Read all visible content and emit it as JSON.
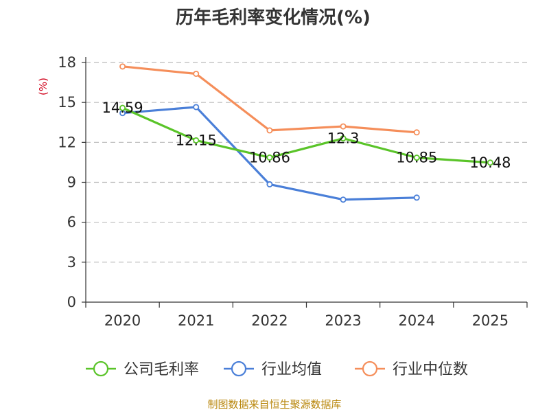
{
  "chart_data": {
    "type": "line",
    "title": "历年毛利率变化情况(%)",
    "ylabel": "(%)",
    "xlabel": "",
    "categories": [
      "2020",
      "2021",
      "2022",
      "2023",
      "2024",
      "2025"
    ],
    "ylim": [
      0,
      18
    ],
    "yticks": [
      0,
      3,
      6,
      9,
      12,
      15,
      18
    ],
    "grid": true,
    "legend_position": "bottom",
    "series": [
      {
        "name": "公司毛利率",
        "color": "#5ac429",
        "values": [
          14.59,
          12.15,
          10.86,
          12.3,
          10.85,
          10.48
        ],
        "labels": [
          "14.59",
          "12.15",
          "10.86",
          "12.3",
          "10.85",
          "10.48"
        ]
      },
      {
        "name": "行业均值",
        "color": "#4a7fd8",
        "values": [
          14.2,
          14.65,
          8.85,
          7.7,
          7.85,
          null
        ]
      },
      {
        "name": "行业中位数",
        "color": "#f58e5a",
        "values": [
          17.7,
          17.15,
          12.9,
          13.2,
          12.75,
          null
        ]
      }
    ]
  },
  "source_text": "制图数据来自恒生聚源数据库"
}
